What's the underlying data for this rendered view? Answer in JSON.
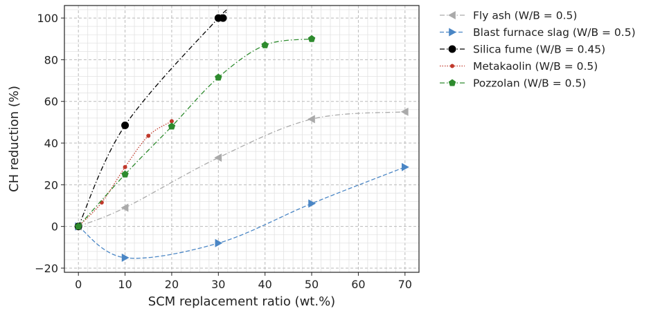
{
  "chart_data": {
    "type": "line",
    "title": "",
    "xlabel": "SCM replacement ratio (wt.%)",
    "ylabel": "CH reduction (%)",
    "xlim": [
      -3,
      73
    ],
    "ylim": [
      -22,
      106
    ],
    "xticks": [
      0,
      10,
      20,
      30,
      40,
      50,
      60,
      70
    ],
    "yticks": [
      -20,
      0,
      20,
      40,
      60,
      80,
      100
    ],
    "grid": true,
    "legend_position": "outside-right-top",
    "series": [
      {
        "name": "Fly ash (W/B = 0.5)",
        "color": "#aaaaaa",
        "marker": "triangle-left",
        "line_style": "dashdot",
        "x": [
          0,
          10,
          30,
          50,
          70
        ],
        "y": [
          0,
          9,
          33,
          51.5,
          55
        ]
      },
      {
        "name": "Blast furnace slag (W/B = 0.5)",
        "color": "#4a86c5",
        "marker": "triangle-right",
        "line_style": "dashed",
        "x": [
          0,
          10,
          30,
          50,
          70
        ],
        "y": [
          0,
          -15,
          -8,
          11,
          28.5
        ]
      },
      {
        "name": "Silica fume (W/B = 0.45)",
        "color": "#000000",
        "marker": "circle",
        "line_style": "dashdot",
        "x": [
          0,
          10,
          30,
          31
        ],
        "y": [
          0,
          48.5,
          100,
          100
        ]
      },
      {
        "name": "Metakaolin (W/B = 0.5)",
        "color": "#c0392b",
        "marker": "small-dot",
        "line_style": "dotted",
        "x": [
          0,
          5,
          10,
          15,
          20
        ],
        "y": [
          0,
          11.5,
          28.5,
          43.5,
          50.5
        ]
      },
      {
        "name": "Pozzolan (W/B = 0.5)",
        "color": "#2e8b2e",
        "marker": "pentagon",
        "line_style": "dashdot",
        "x": [
          0,
          10,
          20,
          30,
          40,
          50
        ],
        "y": [
          0,
          25,
          48,
          71.5,
          87,
          90
        ]
      }
    ]
  }
}
